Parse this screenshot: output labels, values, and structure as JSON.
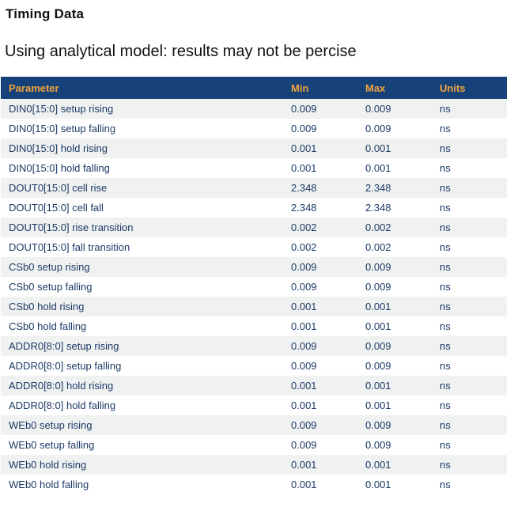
{
  "page": {
    "title": "Timing Data",
    "subtitle": "Using analytical model: results may not be percise"
  },
  "table": {
    "columns": [
      "Parameter",
      "Min",
      "Max",
      "Units"
    ],
    "rows": [
      [
        "DIN0[15:0] setup rising",
        "0.009",
        "0.009",
        "ns"
      ],
      [
        "DIN0[15:0] setup falling",
        "0.009",
        "0.009",
        "ns"
      ],
      [
        "DIN0[15:0] hold rising",
        "0.001",
        "0.001",
        "ns"
      ],
      [
        "DIN0[15:0] hold falling",
        "0.001",
        "0.001",
        "ns"
      ],
      [
        "DOUT0[15:0] cell rise",
        "2.348",
        "2.348",
        "ns"
      ],
      [
        "DOUT0[15:0] cell fall",
        "2.348",
        "2.348",
        "ns"
      ],
      [
        "DOUT0[15:0] rise transition",
        "0.002",
        "0.002",
        "ns"
      ],
      [
        "DOUT0[15:0] fall transition",
        "0.002",
        "0.002",
        "ns"
      ],
      [
        "CSb0 setup rising",
        "0.009",
        "0.009",
        "ns"
      ],
      [
        "CSb0 setup falling",
        "0.009",
        "0.009",
        "ns"
      ],
      [
        "CSb0 hold rising",
        "0.001",
        "0.001",
        "ns"
      ],
      [
        "CSb0 hold falling",
        "0.001",
        "0.001",
        "ns"
      ],
      [
        "ADDR0[8:0] setup rising",
        "0.009",
        "0.009",
        "ns"
      ],
      [
        "ADDR0[8:0] setup falling",
        "0.009",
        "0.009",
        "ns"
      ],
      [
        "ADDR0[8:0] hold rising",
        "0.001",
        "0.001",
        "ns"
      ],
      [
        "ADDR0[8:0] hold falling",
        "0.001",
        "0.001",
        "ns"
      ],
      [
        "WEb0 setup rising",
        "0.009",
        "0.009",
        "ns"
      ],
      [
        "WEb0 setup falling",
        "0.009",
        "0.009",
        "ns"
      ],
      [
        "WEb0 hold rising",
        "0.001",
        "0.001",
        "ns"
      ],
      [
        "WEb0 hold falling",
        "0.001",
        "0.001",
        "ns"
      ]
    ]
  },
  "colors": {
    "header_bg": "#164179",
    "header_text": "#efa43d",
    "row_text": "#1c3a66",
    "stripe_bg": "#f0f1f1",
    "title_text": "#111111"
  }
}
